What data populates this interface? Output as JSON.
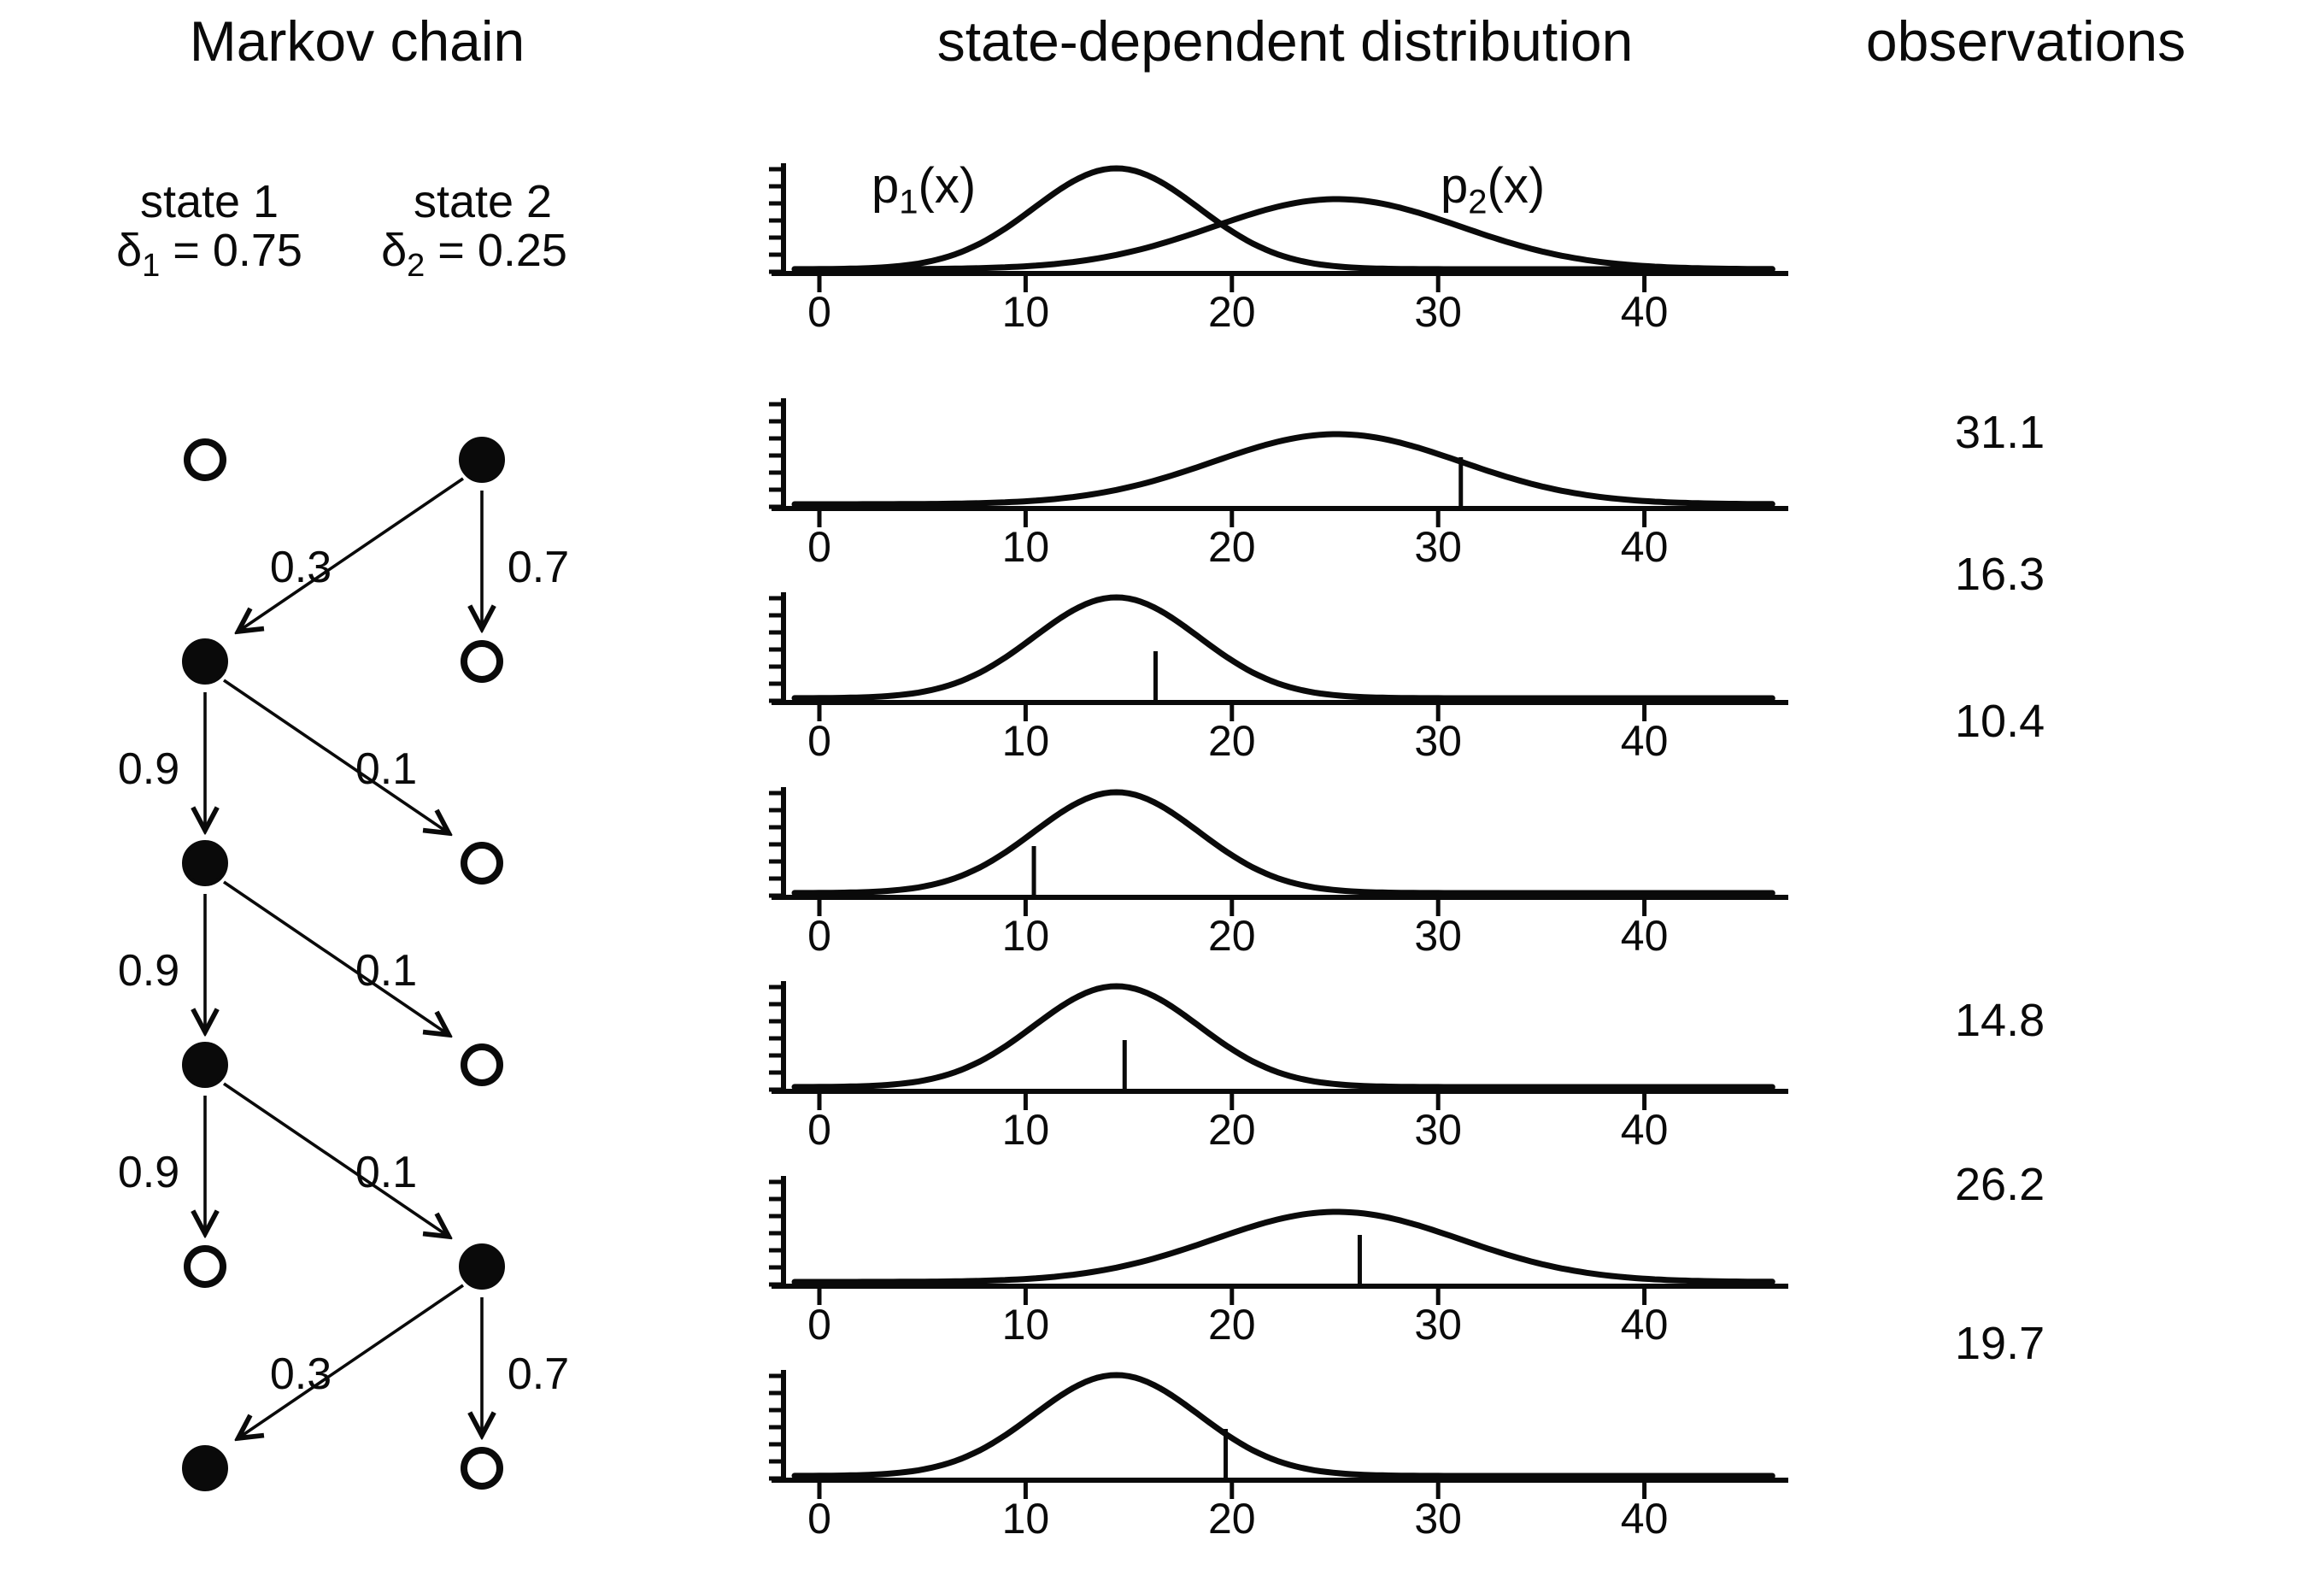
{
  "headers": {
    "left": "Markov chain",
    "middle": "state-dependent distribution",
    "right": "observations"
  },
  "states": [
    {
      "name": "state 1",
      "delta_sym": "δ",
      "delta_sub": "1",
      "delta_val": " = 0.75"
    },
    {
      "name": "state 2",
      "delta_sym": "δ",
      "delta_sub": "2",
      "delta_val": " = 0.25"
    }
  ],
  "chain": {
    "rows": [
      {
        "active": 2
      },
      {
        "active": 1
      },
      {
        "active": 1
      },
      {
        "active": 1
      },
      {
        "active": 2
      },
      {
        "active": 1
      }
    ],
    "transitions": [
      {
        "switch_label": "0.3",
        "stay_label": "0.7"
      },
      {
        "stay_label": "0.9",
        "switch_label": "0.1"
      },
      {
        "stay_label": "0.9",
        "switch_label": "0.1"
      },
      {
        "stay_label": "0.9",
        "switch_label": "0.1"
      },
      {
        "switch_label": "0.3",
        "stay_label": "0.7"
      }
    ]
  },
  "densities": {
    "p1": {
      "label_pre": "p",
      "label_sub": "1",
      "label_post": "(x)",
      "mean": 14.4,
      "sd": 4.0,
      "peak": 118
    },
    "p2": {
      "label_pre": "p",
      "label_sub": "2",
      "label_post": "(x)",
      "mean": 25.1,
      "sd": 6.0,
      "peak": 82
    }
  },
  "axis": {
    "ticks": [
      "0",
      "10",
      "20",
      "30",
      "40"
    ],
    "tick_values": [
      0,
      10,
      20,
      30,
      40
    ]
  },
  "plots": [
    {
      "curves": [
        "p1",
        "p2"
      ],
      "show_labels": true,
      "obs": null
    },
    {
      "curves": [
        "p2"
      ],
      "obs": 31.1
    },
    {
      "curves": [
        "p1"
      ],
      "obs": 16.3
    },
    {
      "curves": [
        "p1"
      ],
      "obs": 10.4
    },
    {
      "curves": [
        "p1"
      ],
      "obs": 14.8
    },
    {
      "curves": [
        "p2"
      ],
      "obs": 26.2
    },
    {
      "curves": [
        "p1"
      ],
      "obs": 19.7
    }
  ],
  "observations": [
    "31.1",
    "16.3",
    "10.4",
    "14.8",
    "26.2",
    "19.7"
  ],
  "chart_data": {
    "type": "line",
    "title": "state-dependent distribution",
    "xlabel": "",
    "ylabel": "",
    "x_axis": {
      "ticks": [
        0,
        10,
        20,
        30,
        40
      ],
      "range": [
        -1.5,
        46.5
      ]
    },
    "densities": [
      {
        "name": "p1(x)",
        "distribution": "normal",
        "mean": 14.4,
        "sd": 4.0,
        "state": 1
      },
      {
        "name": "p2(x)",
        "distribution": "normal",
        "mean": 25.1,
        "sd": 6.0,
        "state": 2
      }
    ],
    "initial_distribution": {
      "delta1": 0.75,
      "delta2": 0.25
    },
    "transition_probabilities": {
      "from_state1": {
        "to_state1": 0.9,
        "to_state2": 0.1
      },
      "from_state2": {
        "to_state1": 0.3,
        "to_state2": 0.7
      }
    },
    "state_sequence": [
      2,
      1,
      1,
      1,
      2,
      1
    ],
    "observations": [
      31.1,
      16.3,
      10.4,
      14.8,
      26.2,
      19.7
    ]
  }
}
